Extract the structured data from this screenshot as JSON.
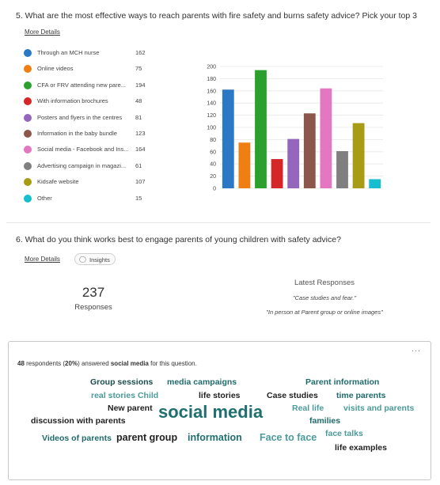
{
  "q5": {
    "title": "5.  What are the most effective ways to reach parents with fire safety and burns safety advice? Pick your top 3",
    "more_details": "More Details",
    "options": [
      {
        "label": "Through an MCH nurse",
        "count": "162"
      },
      {
        "label": "Online videos",
        "count": "75"
      },
      {
        "label": "CFA or FRV attending new pare...",
        "count": "194"
      },
      {
        "label": "With information brochures",
        "count": "48"
      },
      {
        "label": "Posters and flyers in the centres",
        "count": "81"
      },
      {
        "label": "Information in the baby bundle",
        "count": "123"
      },
      {
        "label": "Social media - Facebook and Ins...",
        "count": "164"
      },
      {
        "label": "Advertising campaign in magazi...",
        "count": "61"
      },
      {
        "label": "Kidsafe website",
        "count": "107"
      },
      {
        "label": "Other",
        "count": "15"
      }
    ]
  },
  "chart_data": {
    "type": "bar",
    "categories": [
      "Through an MCH nurse",
      "Online videos",
      "CFA or FRV attending new pare...",
      "With information brochures",
      "Posters and flyers in the centres",
      "Information in the baby bundle",
      "Social media - Facebook and Ins...",
      "Advertising campaign in magazi...",
      "Kidsafe website",
      "Other"
    ],
    "values": [
      162,
      75,
      194,
      48,
      81,
      123,
      164,
      61,
      107,
      15
    ],
    "colors": [
      "#2b78c5",
      "#f07f13",
      "#2ca02c",
      "#d62728",
      "#9467bd",
      "#8c564b",
      "#e377c2",
      "#7f7f7f",
      "#a89b16",
      "#17becf"
    ],
    "ylim": [
      0,
      200
    ],
    "yticks": [
      0,
      20,
      40,
      60,
      80,
      100,
      120,
      140,
      160,
      180,
      200
    ],
    "grid": true,
    "legend": "left"
  },
  "q6": {
    "title": "6.  What do you think works best to engage parents of young children with safety advice?",
    "more_details": "More Details",
    "insights_label": "Insights",
    "responses_count": "237",
    "responses_label": "Responses",
    "latest_title": "Latest Responses",
    "latest": [
      "\"Case studies and fear.\"",
      "\"In person at Parent group or online images\""
    ],
    "menu_icon": "more-icon",
    "summary": {
      "count": "48",
      "text1": " respondents (",
      "percent": "20%",
      "text2": ") answered ",
      "term": "social media",
      "text3": " for this question."
    },
    "words": [
      {
        "text": "Group sessions",
        "color": "#1b4d4d"
      },
      {
        "text": "media campaigns",
        "color": "#1f6a6a"
      },
      {
        "text": "Parent information",
        "color": "#1f6a6a"
      },
      {
        "text": "real stories Child",
        "color": "#4c9a9a"
      },
      {
        "text": "life stories",
        "color": "#222222"
      },
      {
        "text": "Case studies",
        "color": "#222222"
      },
      {
        "text": "time parents",
        "color": "#1f6a6a"
      },
      {
        "text": "New parent",
        "color": "#222222"
      },
      {
        "text": "social media",
        "color": "#1f6f6f"
      },
      {
        "text": "Real life",
        "color": "#4c9a9a"
      },
      {
        "text": "visits and parents",
        "color": "#4c9a9a"
      },
      {
        "text": "discussion with parents",
        "color": "#222222"
      },
      {
        "text": "families",
        "color": "#1f6a6a"
      },
      {
        "text": "Videos of parents",
        "color": "#1f6a6a"
      },
      {
        "text": "parent group",
        "color": "#222222"
      },
      {
        "text": "information",
        "color": "#1f6f6f"
      },
      {
        "text": "Face to face",
        "color": "#4c9a9a"
      },
      {
        "text": "face talks",
        "color": "#4c9a9a"
      },
      {
        "text": "life examples",
        "color": "#222222"
      }
    ]
  }
}
